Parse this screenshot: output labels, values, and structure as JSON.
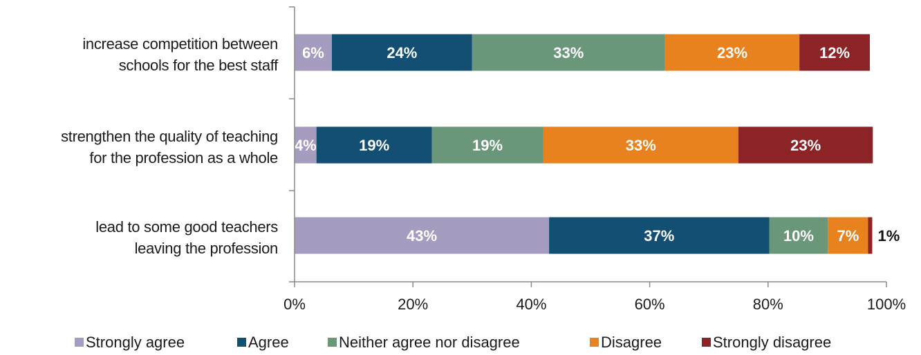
{
  "chart_data": {
    "type": "bar",
    "orientation": "horizontal",
    "stacked": true,
    "categories": [
      [
        "increase competition between",
        "schools for the best staff"
      ],
      [
        "strengthen the quality of teaching",
        "for the profession as  a whole"
      ],
      [
        "lead to some good teachers",
        "leaving the profession"
      ]
    ],
    "series": [
      {
        "name": "Strongly agree",
        "color": "#a69cc0",
        "values": [
          6.3,
          3.7,
          43.0
        ],
        "labels": [
          "6%",
          "4%",
          "43%"
        ]
      },
      {
        "name": "Agree",
        "color": "#124f72",
        "values": [
          23.7,
          19.5,
          37.2
        ],
        "labels": [
          "24%",
          "19%",
          "37%"
        ]
      },
      {
        "name": "Neither agree nor disagree",
        "color": "#6a967a",
        "values": [
          32.6,
          18.8,
          9.9
        ],
        "labels": [
          "33%",
          "19%",
          "10%"
        ]
      },
      {
        "name": "Disagree",
        "color": "#e8821f",
        "values": [
          22.7,
          33.0,
          6.8
        ],
        "labels": [
          "23%",
          "33%",
          "7%"
        ]
      },
      {
        "name": "Strongly disagree",
        "color": "#8b2327",
        "values": [
          11.9,
          22.7,
          0.7
        ],
        "labels": [
          "12%",
          "23%",
          "1%"
        ]
      }
    ],
    "xlim": [
      0,
      100
    ],
    "xticks": [
      0,
      20,
      40,
      60,
      80,
      100
    ],
    "xtick_labels": [
      "0%",
      "20%",
      "40%",
      "60%",
      "80%",
      "100%"
    ],
    "grid": false,
    "legend_position": "bottom"
  }
}
